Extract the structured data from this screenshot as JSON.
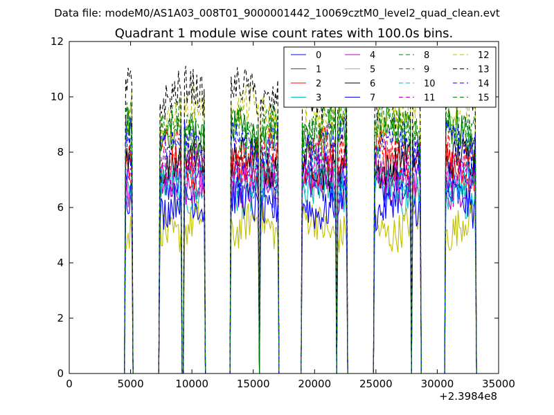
{
  "suptitle": "Data file: modeM0/AS1A03_008T01_9000001442_10069cztM0_level2_quad_clean.evt",
  "chart_data": {
    "type": "line",
    "title": "Quadrant 1 module wise count rates with 100.0s bins.",
    "xlabel": "",
    "ylabel": "",
    "x_offset_label": "+2.3984e8",
    "xlim": [
      0,
      35000
    ],
    "ylim": [
      0,
      12
    ],
    "xticks": [
      0,
      5000,
      10000,
      15000,
      20000,
      25000,
      30000,
      35000
    ],
    "yticks": [
      0,
      2,
      4,
      6,
      8,
      10,
      12
    ],
    "grid": false,
    "legend_position": "top-right",
    "legend_columns": 4,
    "segments": [
      [
        4600,
        5100
      ],
      [
        7400,
        9100
      ],
      [
        9400,
        11000
      ],
      [
        13200,
        15400
      ],
      [
        15600,
        17000
      ],
      [
        19000,
        21700
      ],
      [
        21900,
        22600
      ],
      [
        24900,
        27800
      ],
      [
        28000,
        28600
      ],
      [
        30700,
        33100
      ]
    ],
    "series": [
      {
        "name": "0",
        "color": "#0000ff",
        "dashed": false,
        "level": 7.0
      },
      {
        "name": "1",
        "color": "#008000",
        "dashed": false,
        "level": 8.6
      },
      {
        "name": "2",
        "color": "#ff0000",
        "dashed": false,
        "level": 7.3
      },
      {
        "name": "3",
        "color": "#00bfbf",
        "dashed": false,
        "level": 6.6
      },
      {
        "name": "4",
        "color": "#bf00bf",
        "dashed": false,
        "level": 6.9
      },
      {
        "name": "5",
        "color": "#bfbf00",
        "dashed": false,
        "level": 5.3
      },
      {
        "name": "6",
        "color": "#000000",
        "dashed": false,
        "level": 7.6
      },
      {
        "name": "7",
        "color": "#0000ff",
        "dashed": false,
        "level": 6.1
      },
      {
        "name": "8",
        "color": "#008000",
        "dashed": true,
        "level": 9.0
      },
      {
        "name": "9",
        "color": "#ff0000",
        "dashed": true,
        "level": 8.0
      },
      {
        "name": "10",
        "color": "#00bfbf",
        "dashed": true,
        "level": 7.1
      },
      {
        "name": "11",
        "color": "#bf00bf",
        "dashed": true,
        "level": 7.5
      },
      {
        "name": "12",
        "color": "#bfbf00",
        "dashed": true,
        "level": 9.4
      },
      {
        "name": "13",
        "color": "#000000",
        "dashed": true,
        "level": 10.1
      },
      {
        "name": "14",
        "color": "#0000ff",
        "dashed": true,
        "level": 8.3
      },
      {
        "name": "15",
        "color": "#008000",
        "dashed": true,
        "level": 8.8
      }
    ]
  }
}
